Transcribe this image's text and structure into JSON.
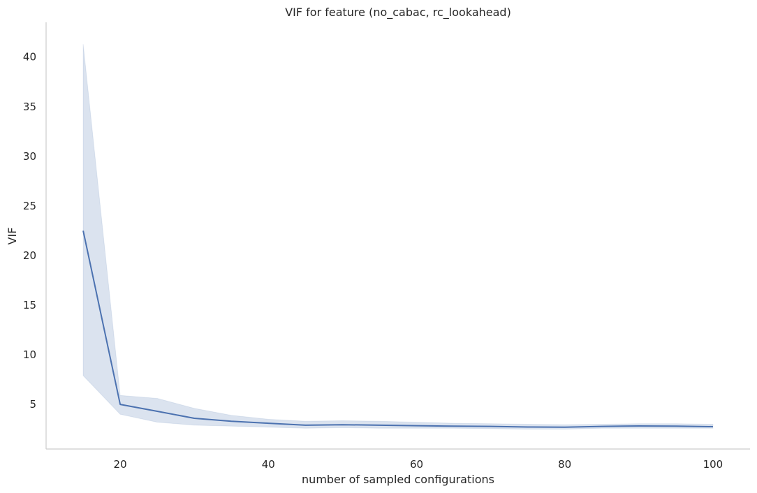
{
  "chart_data": {
    "type": "line",
    "title": "VIF for feature (no_cabac, rc_lookahead)",
    "xlabel": "number of sampled configurations",
    "ylabel": "VIF",
    "xlim": [
      10,
      105
    ],
    "ylim": [
      0.5,
      43.5
    ],
    "xticks": [
      20,
      40,
      60,
      80,
      100
    ],
    "yticks": [
      5,
      10,
      15,
      20,
      25,
      30,
      35,
      40
    ],
    "grid": false,
    "series": [
      {
        "color": "#4c72b0",
        "x": [
          15,
          20,
          25,
          30,
          35,
          40,
          45,
          50,
          55,
          60,
          65,
          70,
          75,
          80,
          85,
          90,
          95,
          100
        ],
        "values": [
          22.5,
          5.0,
          4.3,
          3.6,
          3.3,
          3.1,
          2.9,
          2.95,
          2.9,
          2.85,
          2.8,
          2.78,
          2.72,
          2.7,
          2.78,
          2.82,
          2.8,
          2.75
        ],
        "ci_lower": [
          7.9,
          4.0,
          3.2,
          2.9,
          2.8,
          2.7,
          2.6,
          2.65,
          2.6,
          2.6,
          2.6,
          2.55,
          2.5,
          2.5,
          2.6,
          2.6,
          2.6,
          2.6
        ],
        "ci_upper": [
          41.3,
          5.9,
          5.6,
          4.6,
          3.9,
          3.5,
          3.3,
          3.35,
          3.3,
          3.2,
          3.1,
          3.05,
          3.0,
          2.95,
          3.0,
          3.05,
          3.05,
          3.0
        ]
      }
    ]
  }
}
